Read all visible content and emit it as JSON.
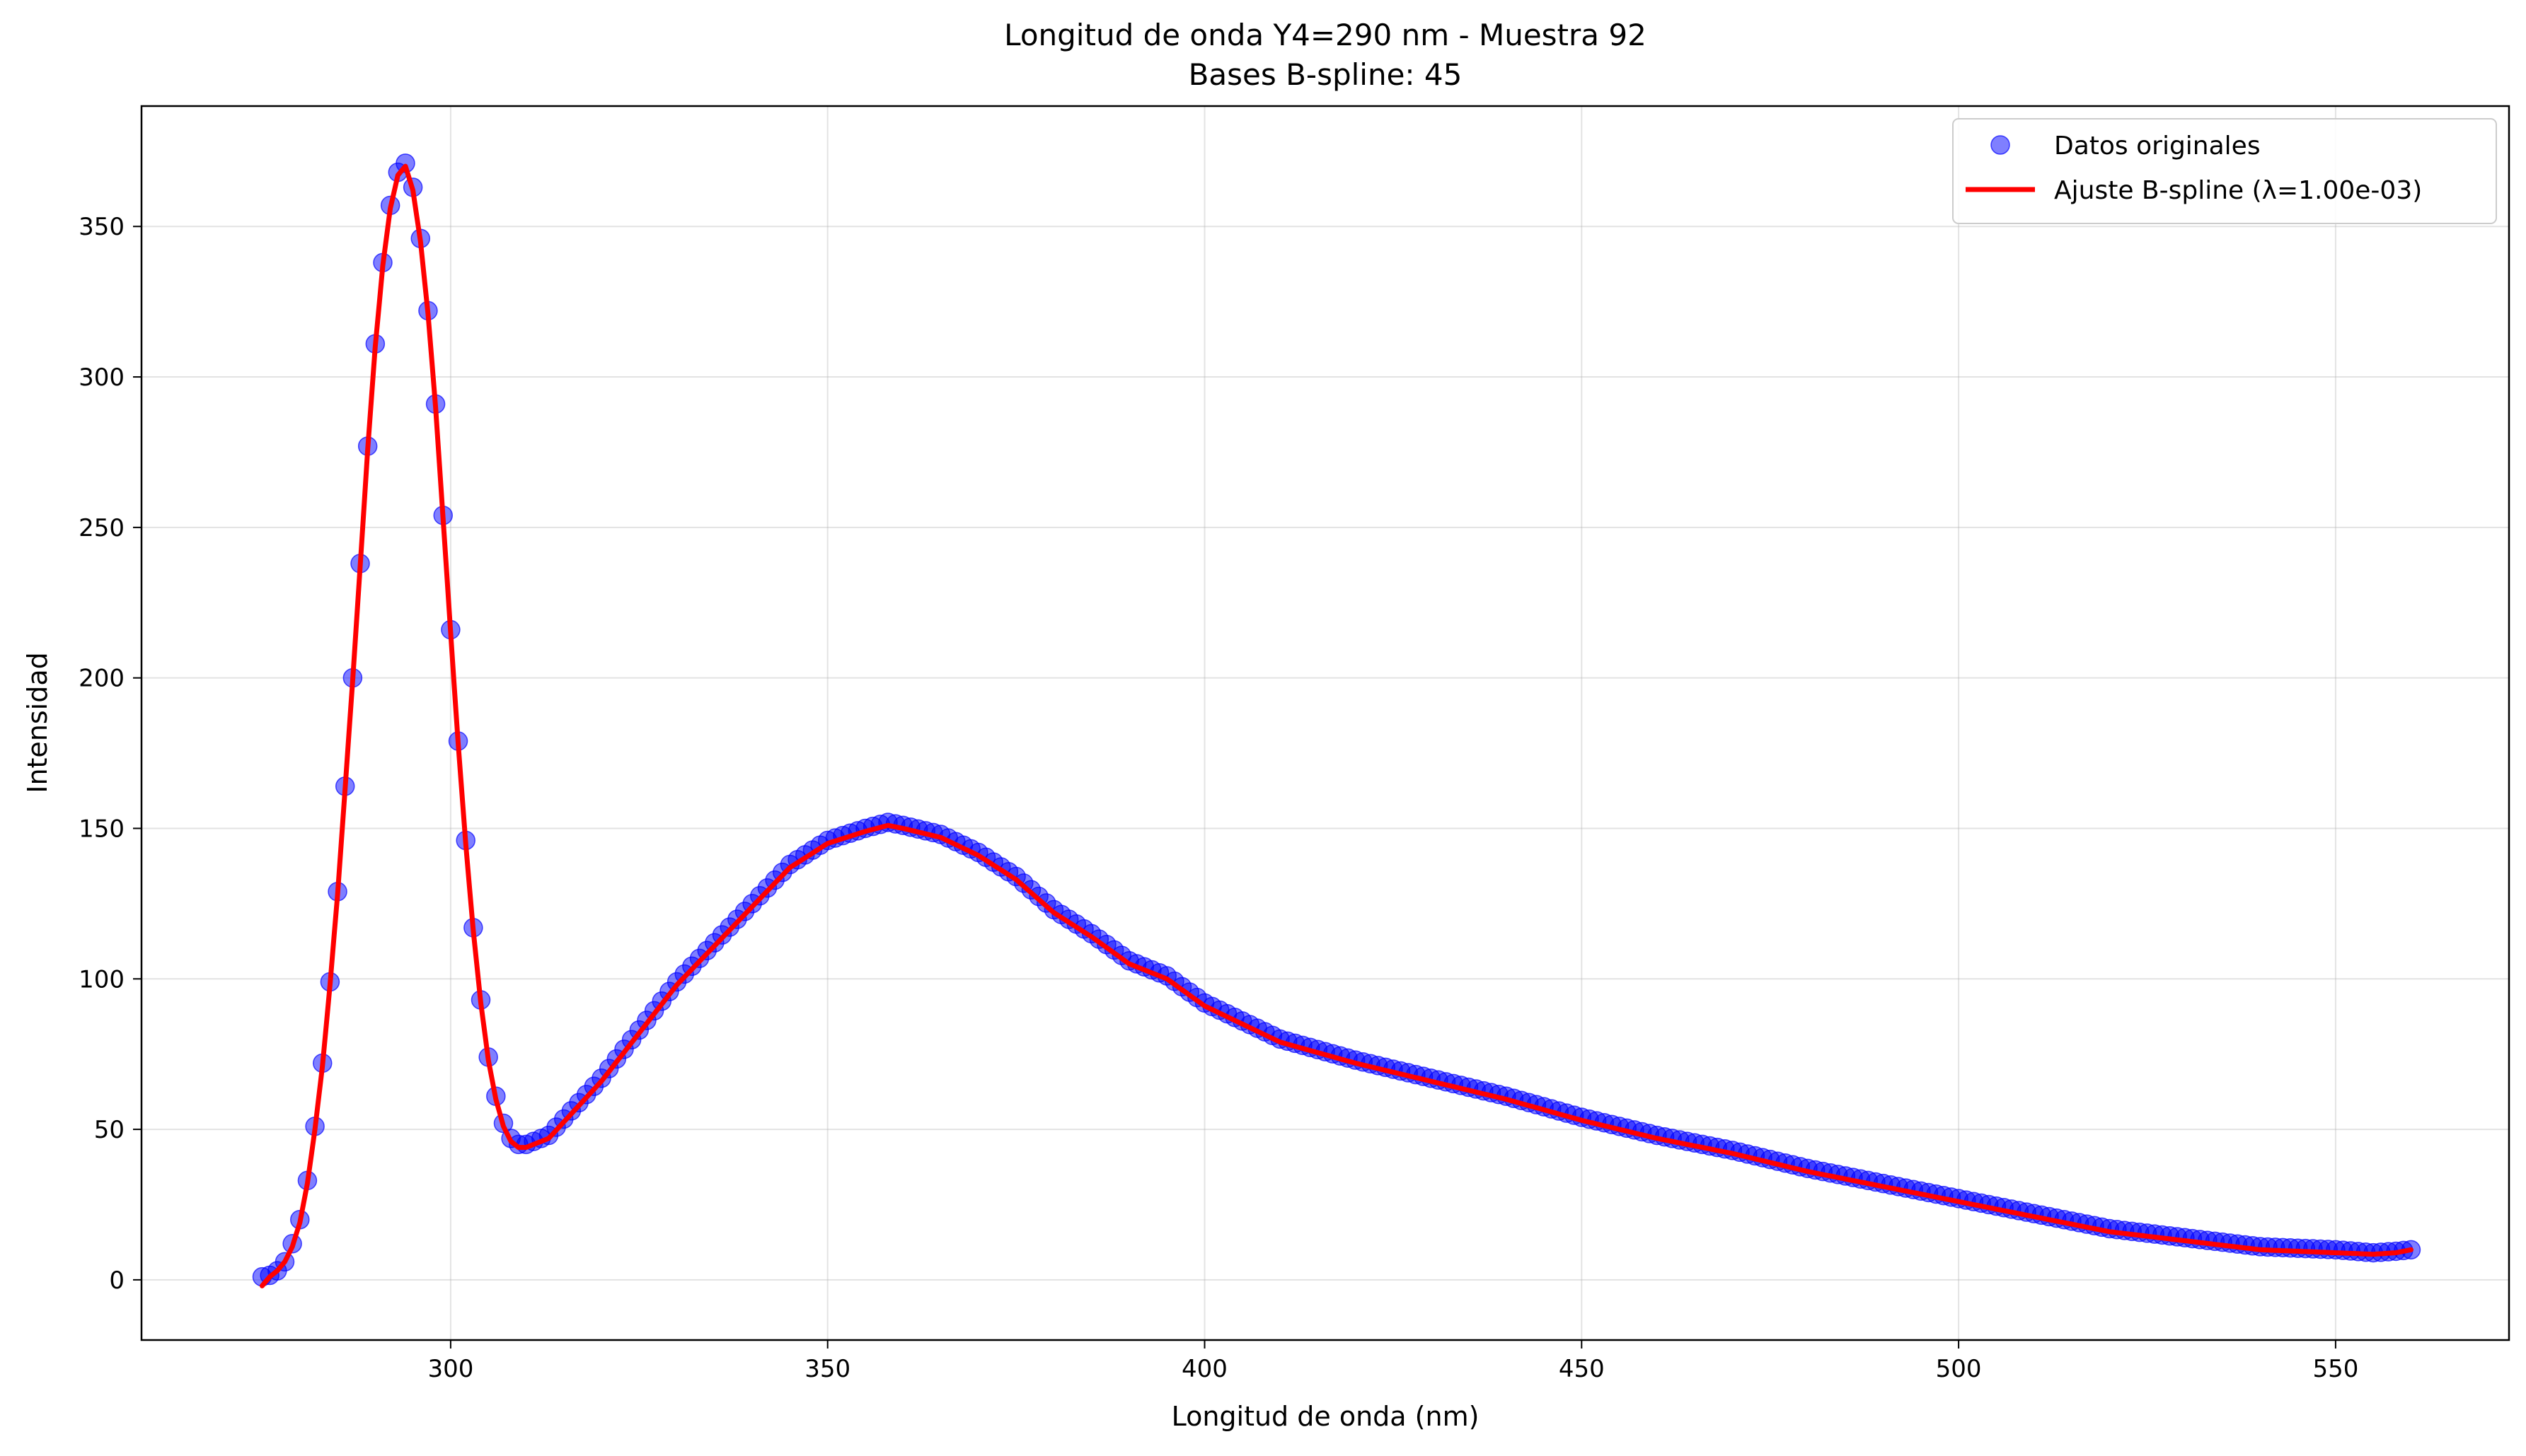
{
  "chart_data": {
    "type": "scatter",
    "title": "Longitud de onda Y4=290 nm - Muestra 92",
    "subtitle": "Bases B-spline: 45",
    "xlabel": "Longitud de onda (nm)",
    "ylabel": "Intensidad",
    "xlim": [
      259,
      573
    ],
    "ylim": [
      -20,
      390
    ],
    "xticks": [
      300,
      350,
      400,
      450,
      500,
      550
    ],
    "yticks": [
      0,
      50,
      100,
      150,
      200,
      250,
      300,
      350
    ],
    "grid": true,
    "legend_position": "top-right",
    "colors": {
      "points": "#0000ff",
      "fit": "#ff0000"
    },
    "series": [
      {
        "name": "Datos originales",
        "kind": "scatter",
        "x_range": [
          275,
          560
        ],
        "x_step": 1,
        "keypoints": [
          [
            275,
            1
          ],
          [
            276,
            1.5
          ],
          [
            277,
            3
          ],
          [
            278,
            6
          ],
          [
            279,
            12
          ],
          [
            280,
            20
          ],
          [
            281,
            33
          ],
          [
            282,
            51
          ],
          [
            283,
            72
          ],
          [
            284,
            99
          ],
          [
            285,
            129
          ],
          [
            286,
            164
          ],
          [
            287,
            200
          ],
          [
            288,
            238
          ],
          [
            289,
            277
          ],
          [
            290,
            311
          ],
          [
            291,
            338
          ],
          [
            292,
            357
          ],
          [
            293,
            368
          ],
          [
            294,
            371
          ],
          [
            295,
            363
          ],
          [
            296,
            346
          ],
          [
            297,
            322
          ],
          [
            298,
            291
          ],
          [
            299,
            254
          ],
          [
            300,
            216
          ],
          [
            301,
            179
          ],
          [
            302,
            146
          ],
          [
            303,
            117
          ],
          [
            304,
            93
          ],
          [
            305,
            74
          ],
          [
            306,
            61
          ],
          [
            307,
            52
          ],
          [
            308,
            47
          ],
          [
            309,
            45
          ],
          [
            310,
            45
          ],
          [
            313,
            48
          ],
          [
            320,
            67
          ],
          [
            330,
            99
          ],
          [
            340,
            125
          ],
          [
            345,
            138
          ],
          [
            350,
            146
          ],
          [
            355,
            150
          ],
          [
            358,
            152
          ],
          [
            360,
            151
          ],
          [
            365,
            148
          ],
          [
            370,
            142
          ],
          [
            375,
            134
          ],
          [
            380,
            123
          ],
          [
            385,
            115
          ],
          [
            390,
            106
          ],
          [
            395,
            101
          ],
          [
            400,
            92
          ],
          [
            405,
            86
          ],
          [
            410,
            80
          ],
          [
            420,
            73
          ],
          [
            430,
            67
          ],
          [
            440,
            61
          ],
          [
            450,
            54
          ],
          [
            460,
            48
          ],
          [
            470,
            43
          ],
          [
            480,
            37
          ],
          [
            490,
            32
          ],
          [
            500,
            27
          ],
          [
            510,
            22
          ],
          [
            520,
            17
          ],
          [
            530,
            14
          ],
          [
            540,
            11
          ],
          [
            550,
            10
          ],
          [
            555,
            9
          ],
          [
            558,
            9.5
          ],
          [
            560,
            10
          ]
        ]
      },
      {
        "name": "Ajuste B-spline (λ=1.00e-03)",
        "kind": "line",
        "x_range": [
          275,
          560
        ],
        "keypoints": [
          [
            275,
            -2
          ],
          [
            276,
            1
          ],
          [
            277,
            3
          ],
          [
            278,
            6
          ],
          [
            279,
            11
          ],
          [
            280,
            19
          ],
          [
            281,
            32
          ],
          [
            282,
            50
          ],
          [
            283,
            71
          ],
          [
            284,
            98
          ],
          [
            285,
            128
          ],
          [
            286,
            163
          ],
          [
            287,
            199
          ],
          [
            288,
            237
          ],
          [
            289,
            276
          ],
          [
            290,
            310
          ],
          [
            291,
            337
          ],
          [
            292,
            356
          ],
          [
            293,
            367
          ],
          [
            294,
            370
          ],
          [
            295,
            362
          ],
          [
            296,
            345
          ],
          [
            297,
            321
          ],
          [
            298,
            290
          ],
          [
            299,
            253
          ],
          [
            300,
            215
          ],
          [
            301,
            178
          ],
          [
            302,
            145
          ],
          [
            303,
            116
          ],
          [
            304,
            92
          ],
          [
            305,
            73
          ],
          [
            306,
            60
          ],
          [
            307,
            51
          ],
          [
            308,
            46
          ],
          [
            309,
            44
          ],
          [
            310,
            44
          ],
          [
            313,
            47
          ],
          [
            320,
            66
          ],
          [
            330,
            98
          ],
          [
            340,
            124
          ],
          [
            345,
            137
          ],
          [
            350,
            145
          ],
          [
            355,
            149
          ],
          [
            358,
            151
          ],
          [
            360,
            150
          ],
          [
            365,
            147
          ],
          [
            370,
            141
          ],
          [
            375,
            133
          ],
          [
            380,
            122
          ],
          [
            385,
            114
          ],
          [
            390,
            105
          ],
          [
            395,
            100
          ],
          [
            400,
            91
          ],
          [
            405,
            85
          ],
          [
            410,
            79
          ],
          [
            420,
            72
          ],
          [
            430,
            66
          ],
          [
            440,
            60
          ],
          [
            450,
            53
          ],
          [
            460,
            47
          ],
          [
            470,
            42
          ],
          [
            480,
            36
          ],
          [
            490,
            31
          ],
          [
            500,
            26
          ],
          [
            510,
            21
          ],
          [
            520,
            16
          ],
          [
            530,
            13
          ],
          [
            540,
            10
          ],
          [
            550,
            9
          ],
          [
            555,
            8.5
          ],
          [
            558,
            9
          ],
          [
            560,
            10
          ]
        ]
      }
    ]
  }
}
